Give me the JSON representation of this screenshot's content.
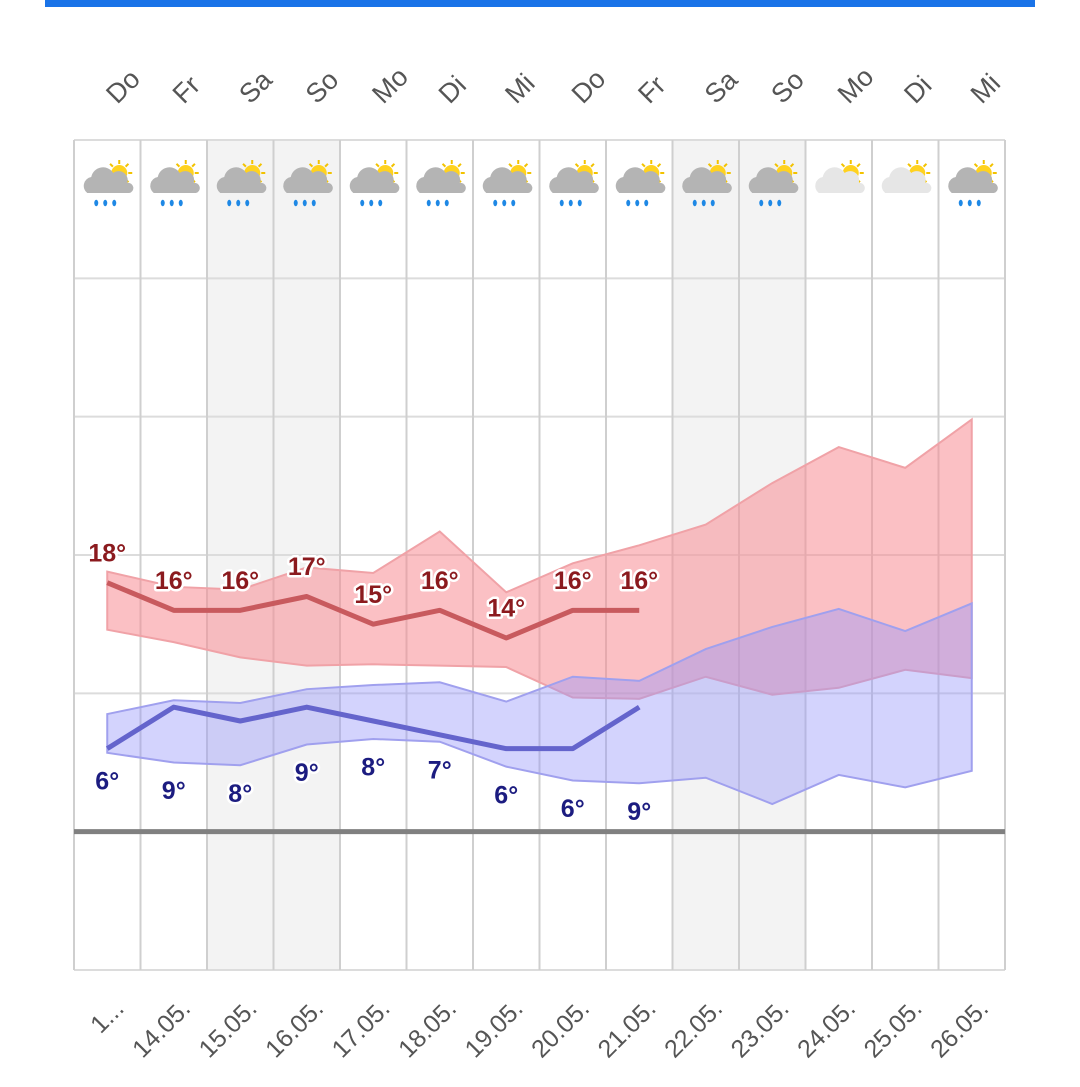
{
  "chart_data": {
    "type": "line",
    "days": [
      "Do",
      "Fr",
      "Sa",
      "So",
      "Mo",
      "Di",
      "Mi",
      "Do",
      "Fr",
      "Sa",
      "So",
      "Mo",
      "Di",
      "Mi"
    ],
    "categories": [
      "1...",
      "14.05.",
      "15.05.",
      "16.05.",
      "17.05.",
      "18.05.",
      "19.05.",
      "20.05.",
      "21.05.",
      "22.05.",
      "23.05.",
      "24.05.",
      "25.05.",
      "26.05."
    ],
    "weekend": [
      false,
      false,
      true,
      true,
      false,
      false,
      false,
      false,
      false,
      true,
      true,
      false,
      false,
      false
    ],
    "icons": [
      "rain",
      "rain",
      "rain",
      "rain",
      "rain",
      "rain",
      "rain",
      "rain",
      "rain",
      "rain",
      "rain",
      "cloud",
      "cloud",
      "rain"
    ],
    "ylim": [
      -10,
      50
    ],
    "yticks": [
      -10,
      0,
      10,
      20,
      30,
      40,
      50
    ],
    "zero_line": 0,
    "series": [
      {
        "color": "#c85a5e",
        "label_color": "#8b1a1e",
        "values": [
          18,
          16,
          16,
          17,
          15,
          16,
          14,
          16,
          16,
          null,
          null,
          null,
          null,
          null
        ],
        "value_labels": [
          "18°",
          "16°",
          "16°",
          "17°",
          "15°",
          "16°",
          "14°",
          "16°",
          "16°",
          null,
          null,
          null,
          null,
          null
        ],
        "band_color": "rgba(248,140,148,0.55)",
        "band_edge": "#f0a2a7",
        "band_high": [
          18.8,
          17.7,
          17.5,
          19.1,
          18.7,
          21.7,
          17.3,
          19.4,
          20.7,
          22.2,
          25.2,
          27.8,
          26.3,
          29.8
        ],
        "band_low": [
          14.6,
          13.7,
          12.6,
          12.0,
          12.1,
          12.0,
          11.9,
          9.7,
          9.6,
          11.2,
          9.9,
          10.4,
          11.7,
          11.1
        ]
      },
      {
        "color": "#6464cc",
        "label_color": "#1c1c80",
        "values": [
          6,
          9,
          8,
          9,
          8,
          7,
          6,
          6,
          9,
          null,
          null,
          null,
          null,
          null
        ],
        "value_labels": [
          "6°",
          "9°",
          "8°",
          "9°",
          "8°",
          "7°",
          "6°",
          "6°",
          "9°",
          null,
          null,
          null,
          null,
          null
        ],
        "band_color": "rgba(150,150,250,0.42)",
        "band_edge": "#a0a0ee",
        "band_high": [
          8.5,
          9.5,
          9.3,
          10.3,
          10.6,
          10.8,
          9.4,
          11.2,
          10.9,
          13.2,
          14.8,
          16.1,
          14.5,
          16.5
        ],
        "band_low": [
          5.7,
          5.0,
          4.8,
          6.3,
          6.7,
          6.5,
          4.7,
          3.7,
          3.5,
          3.9,
          2.0,
          4.1,
          3.2,
          4.4
        ]
      }
    ]
  }
}
